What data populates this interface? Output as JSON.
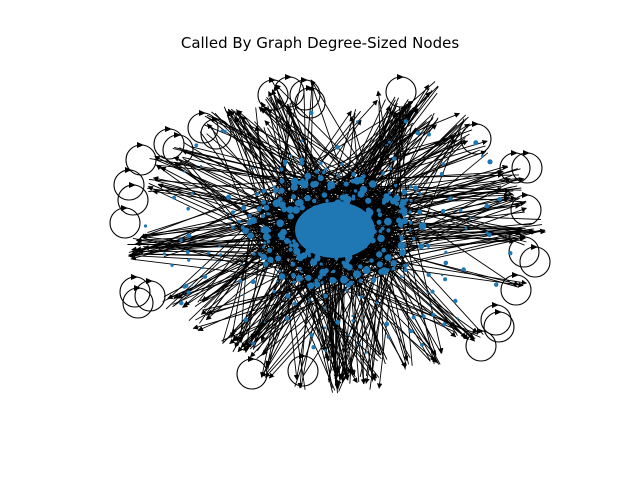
{
  "figure": {
    "title": "Called By Graph Degree-Sized Nodes"
  },
  "graph": {
    "type": "directed-network",
    "node_color": "#1f77b4",
    "edge_color": "#000000",
    "background": "#ffffff",
    "has_self_loops": true,
    "arrowheads": true,
    "layout": "dense core with radiating spokes"
  }
}
